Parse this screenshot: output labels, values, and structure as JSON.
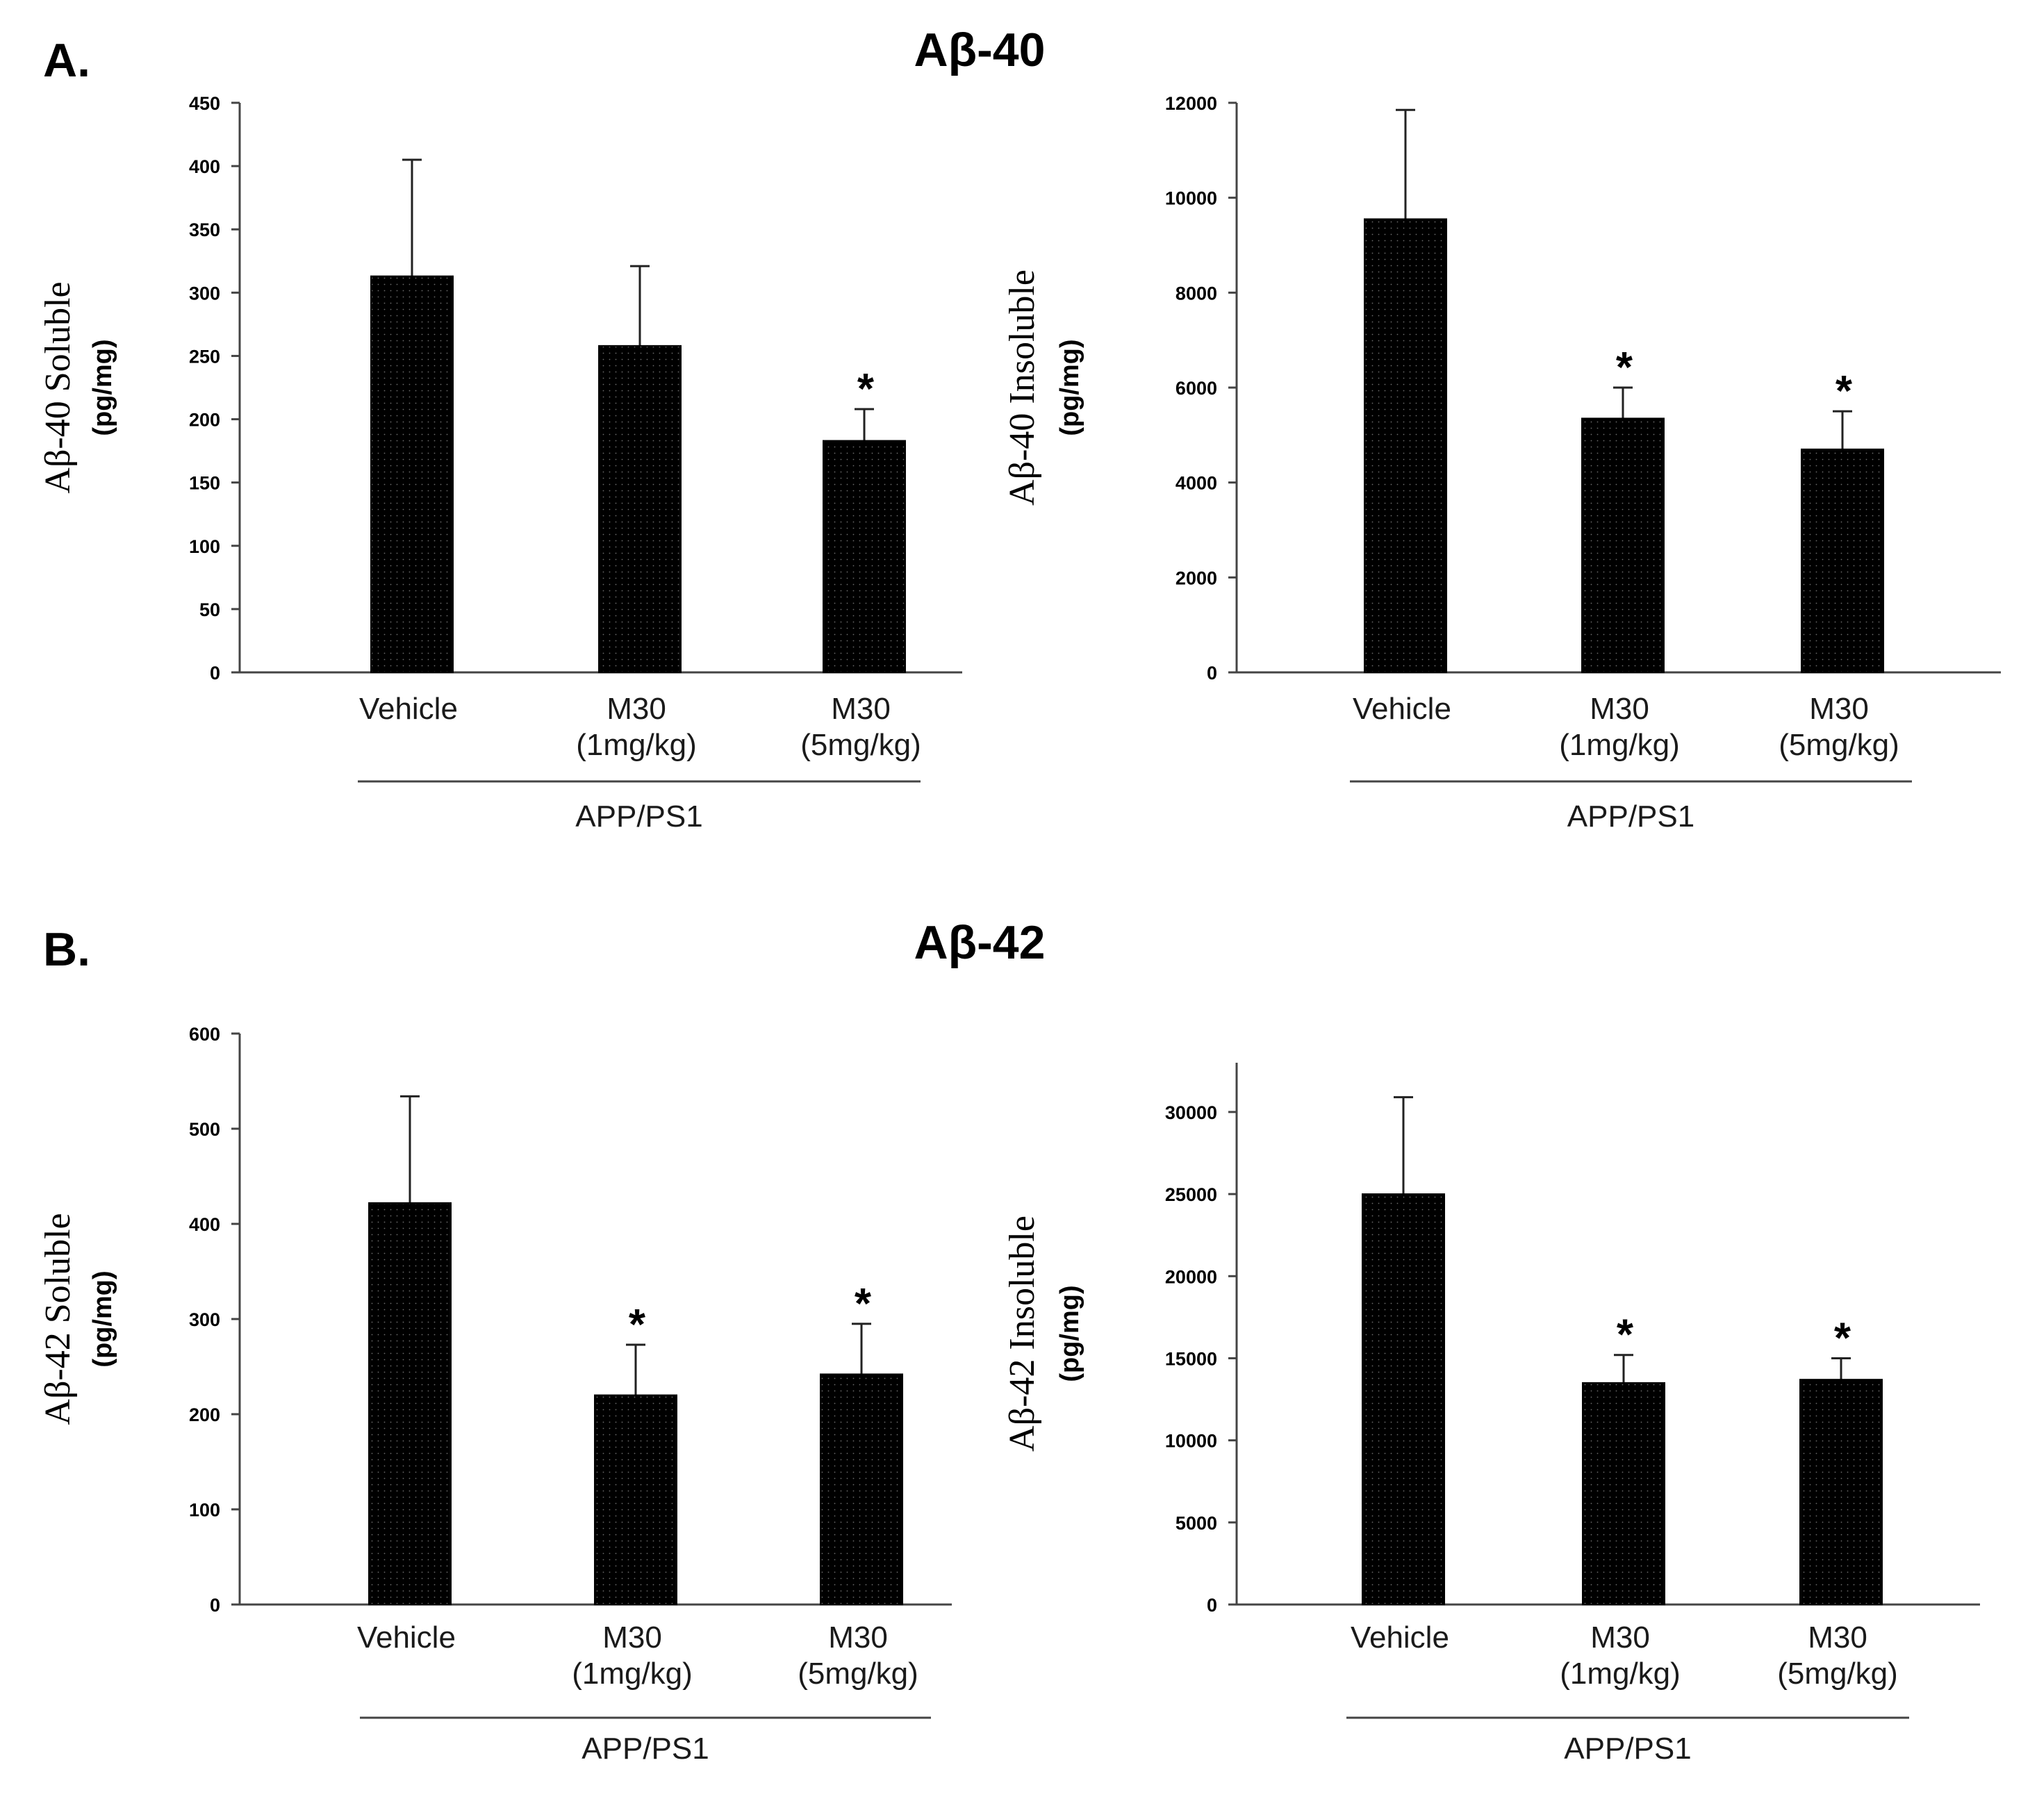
{
  "panels": {
    "A": {
      "label": "A.",
      "title": "Aβ-40"
    },
    "B": {
      "label": "B.",
      "title": "Aβ-42"
    }
  },
  "colors": {
    "bar": "#000000",
    "axis": "#444444",
    "errorbar": "#222222"
  },
  "chart_data": [
    {
      "type": "bar",
      "title": "Aβ-40",
      "ylabel": "Aβ-40 Soluble",
      "yunit": "(pg/mg)",
      "categories": [
        "Vehicle",
        "M30 (1mg/kg)",
        "M30 (5mg/kg)"
      ],
      "category_lines": [
        [
          "Vehicle"
        ],
        [
          "M30",
          "(1mg/kg)"
        ],
        [
          "M30",
          "(5mg/kg)"
        ]
      ],
      "group_label": "APP/PS1",
      "values": [
        313,
        258,
        183
      ],
      "error_upper": [
        405,
        321,
        208
      ],
      "significance": [
        "",
        "",
        "*"
      ],
      "ylim": [
        0,
        450
      ],
      "yticks": [
        0,
        50,
        100,
        150,
        200,
        250,
        300,
        350,
        400,
        450
      ]
    },
    {
      "type": "bar",
      "title": "Aβ-40",
      "ylabel": "Aβ-40 Insoluble",
      "yunit": "(pg/mg)",
      "categories": [
        "Vehicle",
        "M30 (1mg/kg)",
        "M30 (5mg/kg)"
      ],
      "category_lines": [
        [
          "Vehicle"
        ],
        [
          "M30",
          "(1mg/kg)"
        ],
        [
          "M30",
          "(5mg/kg)"
        ]
      ],
      "group_label": "APP/PS1",
      "values": [
        9550,
        5350,
        4700
      ],
      "error_upper": [
        11850,
        6000,
        5500
      ],
      "significance": [
        "",
        "*",
        "*"
      ],
      "ylim": [
        0,
        12000
      ],
      "yticks": [
        0,
        2000,
        4000,
        6000,
        8000,
        10000,
        12000
      ]
    },
    {
      "type": "bar",
      "title": "Aβ-42",
      "ylabel": "Aβ-42 Soluble",
      "yunit": "(pg/mg)",
      "categories": [
        "Vehicle",
        "M30 (1mg/kg)",
        "M30 (5mg/kg)"
      ],
      "category_lines": [
        [
          "Vehicle"
        ],
        [
          "M30",
          "(1mg/kg)"
        ],
        [
          "M30",
          "(5mg/kg)"
        ]
      ],
      "group_label": "APP/PS1",
      "values": [
        422,
        220,
        242
      ],
      "error_upper": [
        534,
        273,
        295
      ],
      "significance": [
        "",
        "*",
        "*"
      ],
      "ylim": [
        0,
        600
      ],
      "yticks": [
        0,
        100,
        200,
        300,
        400,
        500,
        600
      ]
    },
    {
      "type": "bar",
      "title": "Aβ-42",
      "ylabel": "Aβ-42 Insoluble",
      "yunit": "(pg/mg)",
      "categories": [
        "Vehicle",
        "M30 (1mg/kg)",
        "M30 (5mg/kg)"
      ],
      "category_lines": [
        [
          "Vehicle"
        ],
        [
          "M30",
          "(1mg/kg)"
        ],
        [
          "M30",
          "(5mg/kg)"
        ]
      ],
      "group_label": "APP/PS1",
      "values": [
        25000,
        13500,
        13700
      ],
      "error_upper": [
        30900,
        15200,
        15000
      ],
      "significance": [
        "",
        "*",
        "*"
      ],
      "ylim": [
        0,
        33000
      ],
      "yticks": [
        0,
        5000,
        10000,
        15000,
        20000,
        25000,
        30000
      ]
    }
  ]
}
